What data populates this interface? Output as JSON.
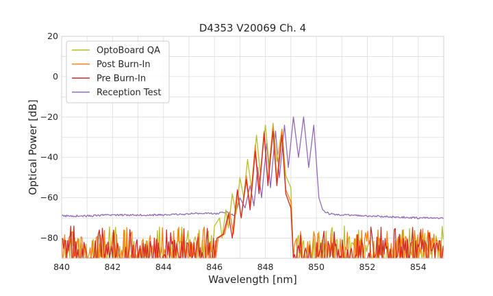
{
  "chart_data": {
    "type": "line",
    "title": "D4353 V20069 Ch. 4",
    "xlabel": "Wavelength [nm]",
    "ylabel": "Optical Power [dB]",
    "xlim": [
      840,
      855
    ],
    "ylim": [
      -90,
      20
    ],
    "xticks": [
      840,
      842,
      844,
      846,
      848,
      850,
      852,
      854
    ],
    "yticks": [
      20,
      0,
      -20,
      -40,
      -60,
      -80
    ],
    "ytick_labels": [
      "20",
      "0",
      "−20",
      "−40",
      "−60",
      "−80"
    ],
    "grid": true,
    "legend_position": "top-left",
    "noise_floor": -90,
    "series": [
      {
        "name": "OptoBoard QA",
        "color": "#bcbd22",
        "points": [
          [
            845.9,
            -90
          ],
          [
            846.0,
            -74
          ],
          [
            846.2,
            -70
          ],
          [
            846.3,
            -80
          ],
          [
            846.45,
            -66
          ],
          [
            846.55,
            -75
          ],
          [
            846.7,
            -58
          ],
          [
            846.85,
            -68
          ],
          [
            847.0,
            -50
          ],
          [
            847.15,
            -60
          ],
          [
            847.3,
            -41
          ],
          [
            847.45,
            -55
          ],
          [
            847.65,
            -29
          ],
          [
            847.8,
            -48
          ],
          [
            848.0,
            -24
          ],
          [
            848.15,
            -44
          ],
          [
            848.3,
            -23
          ],
          [
            848.45,
            -42
          ],
          [
            848.65,
            -26
          ],
          [
            848.8,
            -49
          ],
          [
            849.0,
            -55
          ],
          [
            849.1,
            -90
          ]
        ]
      },
      {
        "name": "Post Burn-In",
        "color": "#ff7f0e",
        "points": [
          [
            846.05,
            -90
          ],
          [
            846.15,
            -80
          ],
          [
            846.4,
            -78
          ],
          [
            846.6,
            -67
          ],
          [
            846.75,
            -78
          ],
          [
            846.9,
            -57
          ],
          [
            847.05,
            -70
          ],
          [
            847.25,
            -49
          ],
          [
            847.4,
            -64
          ],
          [
            847.6,
            -34
          ],
          [
            847.75,
            -56
          ],
          [
            847.95,
            -27
          ],
          [
            848.1,
            -52
          ],
          [
            848.3,
            -25
          ],
          [
            848.45,
            -51
          ],
          [
            848.65,
            -26
          ],
          [
            848.8,
            -56
          ],
          [
            849.0,
            -62
          ],
          [
            849.1,
            -90
          ]
        ]
      },
      {
        "name": "Pre Burn-In",
        "color": "#d62728",
        "points": [
          [
            846.0,
            -90
          ],
          [
            846.1,
            -80
          ],
          [
            846.35,
            -78
          ],
          [
            846.55,
            -68
          ],
          [
            846.7,
            -80
          ],
          [
            846.9,
            -56
          ],
          [
            847.05,
            -70
          ],
          [
            847.25,
            -51
          ],
          [
            847.4,
            -66
          ],
          [
            847.6,
            -37
          ],
          [
            847.75,
            -58
          ],
          [
            847.95,
            -28
          ],
          [
            848.1,
            -54
          ],
          [
            848.3,
            -27
          ],
          [
            848.45,
            -54
          ],
          [
            848.65,
            -29
          ],
          [
            848.8,
            -58
          ],
          [
            849.0,
            -65
          ],
          [
            849.1,
            -90
          ]
        ]
      },
      {
        "name": "Reception Test",
        "color": "#9467bd",
        "points": [
          [
            840.0,
            -69
          ],
          [
            841.0,
            -69
          ],
          [
            842.0,
            -68.5
          ],
          [
            843.0,
            -68.5
          ],
          [
            844.0,
            -68.5
          ],
          [
            845.0,
            -68
          ],
          [
            845.5,
            -67.5
          ],
          [
            846.0,
            -68
          ],
          [
            846.5,
            -67
          ],
          [
            846.8,
            -69
          ],
          [
            847.0,
            -60
          ],
          [
            847.2,
            -65
          ],
          [
            847.4,
            -54
          ],
          [
            847.55,
            -64
          ],
          [
            847.7,
            -45
          ],
          [
            847.85,
            -60
          ],
          [
            848.05,
            -33
          ],
          [
            848.2,
            -55
          ],
          [
            848.4,
            -27
          ],
          [
            848.55,
            -50
          ],
          [
            848.75,
            -24
          ],
          [
            848.9,
            -45
          ],
          [
            849.1,
            -20
          ],
          [
            849.3,
            -40
          ],
          [
            849.5,
            -20
          ],
          [
            849.7,
            -45
          ],
          [
            849.9,
            -24
          ],
          [
            850.1,
            -60
          ],
          [
            850.25,
            -66
          ],
          [
            850.5,
            -68
          ],
          [
            851.0,
            -68.5
          ],
          [
            852.0,
            -69
          ],
          [
            853.0,
            -69.5
          ],
          [
            854.0,
            -70
          ],
          [
            855.0,
            -70
          ]
        ]
      }
    ]
  }
}
